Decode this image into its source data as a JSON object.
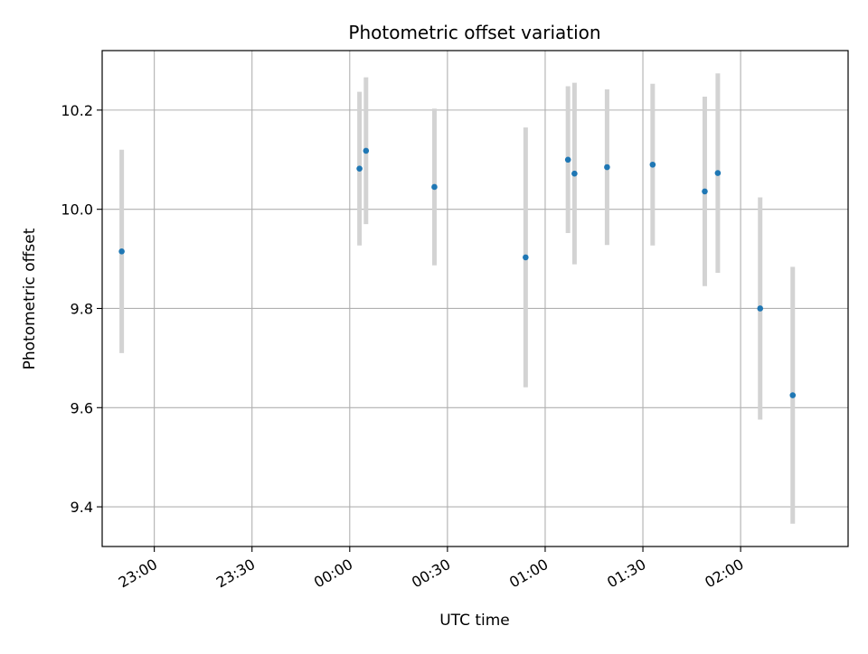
{
  "chart_data": {
    "type": "scatter",
    "title": "Photometric offset variation",
    "xlabel": "UTC time",
    "ylabel": "Photometric offset",
    "grid": true,
    "xlim": [
      "22:44",
      "02:33"
    ],
    "ylim": [
      9.32,
      10.32
    ],
    "x_ticks": [
      "23:00",
      "23:30",
      "00:00",
      "00:30",
      "01:00",
      "01:30",
      "02:00"
    ],
    "y_ticks": [
      "9.4",
      "9.6",
      "9.8",
      "10.0",
      "10.2"
    ],
    "point_color": "#1f77b4",
    "errorbar_color": "#d3d3d3",
    "points": [
      {
        "x": "22:50",
        "y": 9.915,
        "err": 0.205
      },
      {
        "x": "00:03",
        "y": 10.082,
        "err": 0.155
      },
      {
        "x": "00:05",
        "y": 10.118,
        "err": 0.148
      },
      {
        "x": "00:26",
        "y": 10.045,
        "err": 0.158
      },
      {
        "x": "00:54",
        "y": 9.903,
        "err": 0.262
      },
      {
        "x": "01:07",
        "y": 10.1,
        "err": 0.148
      },
      {
        "x": "01:09",
        "y": 10.072,
        "err": 0.183
      },
      {
        "x": "01:19",
        "y": 10.085,
        "err": 0.157
      },
      {
        "x": "01:33",
        "y": 10.09,
        "err": 0.163
      },
      {
        "x": "01:49",
        "y": 10.036,
        "err": 0.191
      },
      {
        "x": "01:53",
        "y": 10.073,
        "err": 0.201
      },
      {
        "x": "02:06",
        "y": 9.8,
        "err": 0.224
      },
      {
        "x": "02:16",
        "y": 9.625,
        "err": 0.259
      }
    ]
  }
}
